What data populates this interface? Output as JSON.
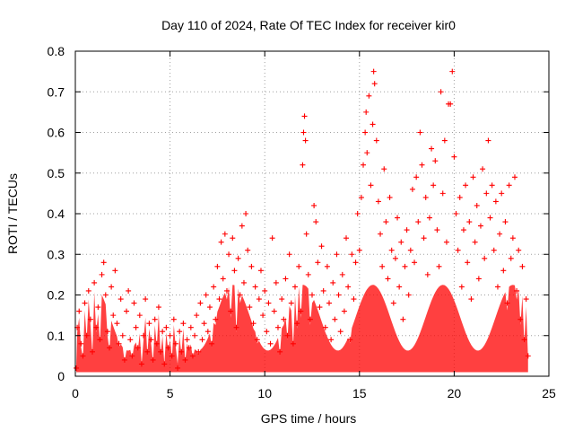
{
  "chart_data": {
    "type": "scatter",
    "title": "Day 110 of 2024, Rate Of TEC Index for receiver kir0",
    "xlabel": "GPS time / hours",
    "ylabel": "ROTI / TECUs",
    "xlim": [
      0,
      25
    ],
    "ylim": [
      0,
      0.8
    ],
    "xticks": [
      0,
      5,
      10,
      15,
      20,
      25
    ],
    "yticks": [
      0,
      0.1,
      0.2,
      0.3,
      0.4,
      0.5,
      0.6,
      0.7,
      0.8
    ],
    "xtick_labels": [
      "0",
      "5",
      "10",
      "15",
      "20",
      "25"
    ],
    "ytick_labels": [
      "0",
      "0.1",
      "0.2",
      "0.3",
      "0.4",
      "0.5",
      "0.6",
      "0.7",
      "0.8"
    ],
    "grid": true,
    "marker": "+",
    "color": "#ff0000",
    "series": [
      {
        "name": "ROTI",
        "points": [
          [
            0.05,
            0.02
          ],
          [
            0.1,
            0.12
          ],
          [
            0.2,
            0.16
          ],
          [
            0.3,
            0.08
          ],
          [
            0.4,
            0.05
          ],
          [
            0.5,
            0.18
          ],
          [
            0.6,
            0.1
          ],
          [
            0.7,
            0.21
          ],
          [
            0.8,
            0.14
          ],
          [
            0.9,
            0.06
          ],
          [
            1.0,
            0.23
          ],
          [
            1.1,
            0.12
          ],
          [
            1.2,
            0.17
          ],
          [
            1.3,
            0.09
          ],
          [
            1.4,
            0.25
          ],
          [
            1.5,
            0.28
          ],
          [
            1.6,
            0.2
          ],
          [
            1.7,
            0.11
          ],
          [
            1.8,
            0.07
          ],
          [
            1.9,
            0.22
          ],
          [
            2.0,
            0.15
          ],
          [
            2.1,
            0.26
          ],
          [
            2.2,
            0.13
          ],
          [
            2.3,
            0.08
          ],
          [
            2.4,
            0.19
          ],
          [
            2.5,
            0.1
          ],
          [
            2.6,
            0.04
          ],
          [
            2.7,
            0.16
          ],
          [
            2.8,
            0.21
          ],
          [
            2.9,
            0.09
          ],
          [
            3.0,
            0.05
          ],
          [
            3.1,
            0.18
          ],
          [
            3.2,
            0.12
          ],
          [
            3.3,
            0.07
          ],
          [
            3.4,
            0.15
          ],
          [
            3.5,
            0.03
          ],
          [
            3.6,
            0.1
          ],
          [
            3.7,
            0.19
          ],
          [
            3.8,
            0.06
          ],
          [
            3.9,
            0.13
          ],
          [
            4.0,
            0.09
          ],
          [
            4.1,
            0.04
          ],
          [
            4.2,
            0.14
          ],
          [
            4.3,
            0.08
          ],
          [
            4.4,
            0.17
          ],
          [
            4.5,
            0.06
          ],
          [
            4.6,
            0.11
          ],
          [
            4.7,
            0.03
          ],
          [
            4.8,
            0.12
          ],
          [
            4.9,
            0.07
          ],
          [
            5.0,
            0.1
          ],
          [
            5.1,
            0.05
          ],
          [
            5.2,
            0.14
          ],
          [
            5.3,
            0.08
          ],
          [
            5.4,
            0.02
          ],
          [
            5.5,
            0.11
          ],
          [
            5.6,
            0.06
          ],
          [
            5.7,
            0.13
          ],
          [
            5.8,
            0.04
          ],
          [
            5.9,
            0.09
          ],
          [
            6.0,
            0.07
          ],
          [
            6.1,
            0.12
          ],
          [
            6.2,
            0.05
          ],
          [
            6.3,
            0.1
          ],
          [
            6.4,
            0.15
          ],
          [
            6.5,
            0.06
          ],
          [
            6.6,
            0.18
          ],
          [
            6.7,
            0.09
          ],
          [
            6.8,
            0.13
          ],
          [
            6.9,
            0.2
          ],
          [
            7.0,
            0.11
          ],
          [
            7.1,
            0.17
          ],
          [
            7.2,
            0.08
          ],
          [
            7.3,
            0.22
          ],
          [
            7.4,
            0.14
          ],
          [
            7.5,
            0.27
          ],
          [
            7.6,
            0.19
          ],
          [
            7.7,
            0.33
          ],
          [
            7.8,
            0.24
          ],
          [
            7.9,
            0.35
          ],
          [
            8.0,
            0.21
          ],
          [
            8.1,
            0.3
          ],
          [
            8.2,
            0.16
          ],
          [
            8.3,
            0.34
          ],
          [
            8.4,
            0.26
          ],
          [
            8.5,
            0.12
          ],
          [
            8.6,
            0.29
          ],
          [
            8.7,
            0.2
          ],
          [
            8.8,
            0.37
          ],
          [
            8.9,
            0.23
          ],
          [
            9.0,
            0.4
          ],
          [
            9.1,
            0.31
          ],
          [
            9.2,
            0.17
          ],
          [
            9.3,
            0.27
          ],
          [
            9.4,
            0.13
          ],
          [
            9.5,
            0.22
          ],
          [
            9.6,
            0.09
          ],
          [
            9.7,
            0.19
          ],
          [
            9.8,
            0.26
          ],
          [
            9.9,
            0.15
          ],
          [
            10.0,
            0.21
          ],
          [
            10.1,
            0.11
          ],
          [
            10.2,
            0.18
          ],
          [
            10.3,
            0.08
          ],
          [
            10.4,
            0.34
          ],
          [
            10.5,
            0.16
          ],
          [
            10.6,
            0.23
          ],
          [
            10.7,
            0.12
          ],
          [
            10.8,
            0.06
          ],
          [
            10.9,
            0.19
          ],
          [
            11.0,
            0.14
          ],
          [
            11.1,
            0.24
          ],
          [
            11.2,
            0.1
          ],
          [
            11.3,
            0.3
          ],
          [
            11.4,
            0.18
          ],
          [
            11.5,
            0.08
          ],
          [
            11.6,
            0.22
          ],
          [
            11.7,
            0.13
          ],
          [
            11.8,
            0.27
          ],
          [
            11.9,
            0.16
          ],
          [
            12.0,
            0.52
          ],
          [
            12.05,
            0.6
          ],
          [
            12.1,
            0.64
          ],
          [
            12.15,
            0.58
          ],
          [
            12.2,
            0.35
          ],
          [
            12.3,
            0.25
          ],
          [
            12.4,
            0.14
          ],
          [
            12.5,
            0.2
          ],
          [
            12.6,
            0.42
          ],
          [
            12.7,
            0.38
          ],
          [
            12.8,
            0.28
          ],
          [
            12.9,
            0.17
          ],
          [
            13.0,
            0.32
          ],
          [
            13.1,
            0.21
          ],
          [
            13.2,
            0.12
          ],
          [
            13.3,
            0.27
          ],
          [
            13.4,
            0.18
          ],
          [
            13.5,
            0.09
          ],
          [
            13.6,
            0.23
          ],
          [
            13.7,
            0.14
          ],
          [
            13.8,
            0.3
          ],
          [
            13.9,
            0.2
          ],
          [
            14.0,
            0.11
          ],
          [
            14.1,
            0.25
          ],
          [
            14.2,
            0.16
          ],
          [
            14.3,
            0.34
          ],
          [
            14.4,
            0.22
          ],
          [
            14.5,
            0.09
          ],
          [
            14.6,
            0.3
          ],
          [
            14.7,
            0.19
          ],
          [
            14.8,
            0.28
          ],
          [
            14.9,
            0.4
          ],
          [
            15.0,
            0.31
          ],
          [
            15.1,
            0.44
          ],
          [
            15.2,
            0.52
          ],
          [
            15.3,
            0.6
          ],
          [
            15.35,
            0.65
          ],
          [
            15.4,
            0.55
          ],
          [
            15.5,
            0.69
          ],
          [
            15.6,
            0.47
          ],
          [
            15.7,
            0.62
          ],
          [
            15.75,
            0.75
          ],
          [
            15.8,
            0.72
          ],
          [
            15.9,
            0.58
          ],
          [
            16.0,
            0.43
          ],
          [
            16.1,
            0.35
          ],
          [
            16.2,
            0.27
          ],
          [
            16.3,
            0.51
          ],
          [
            16.4,
            0.38
          ],
          [
            16.5,
            0.24
          ],
          [
            16.6,
            0.44
          ],
          [
            16.7,
            0.31
          ],
          [
            16.8,
            0.18
          ],
          [
            16.9,
            0.29
          ],
          [
            17.0,
            0.39
          ],
          [
            17.1,
            0.22
          ],
          [
            17.2,
            0.33
          ],
          [
            17.3,
            0.14
          ],
          [
            17.4,
            0.27
          ],
          [
            17.5,
            0.36
          ],
          [
            17.6,
            0.2
          ],
          [
            17.7,
            0.31
          ],
          [
            17.8,
            0.46
          ],
          [
            17.9,
            0.28
          ],
          [
            18.0,
            0.49
          ],
          [
            18.1,
            0.38
          ],
          [
            18.2,
            0.6
          ],
          [
            18.3,
            0.52
          ],
          [
            18.4,
            0.34
          ],
          [
            18.5,
            0.44
          ],
          [
            18.6,
            0.25
          ],
          [
            18.7,
            0.39
          ],
          [
            18.8,
            0.56
          ],
          [
            18.9,
            0.47
          ],
          [
            19.0,
            0.53
          ],
          [
            19.1,
            0.36
          ],
          [
            19.2,
            0.27
          ],
          [
            19.3,
            0.7
          ],
          [
            19.4,
            0.45
          ],
          [
            19.5,
            0.58
          ],
          [
            19.6,
            0.33
          ],
          [
            19.7,
            0.67
          ],
          [
            19.8,
            0.67
          ],
          [
            19.9,
            0.75
          ],
          [
            20.0,
            0.54
          ],
          [
            20.1,
            0.4
          ],
          [
            20.2,
            0.31
          ],
          [
            20.3,
            0.44
          ],
          [
            20.4,
            0.22
          ],
          [
            20.5,
            0.36
          ],
          [
            20.6,
            0.47
          ],
          [
            20.7,
            0.28
          ],
          [
            20.8,
            0.38
          ],
          [
            20.9,
            0.19
          ],
          [
            21.0,
            0.49
          ],
          [
            21.1,
            0.33
          ],
          [
            21.2,
            0.42
          ],
          [
            21.3,
            0.24
          ],
          [
            21.4,
            0.37
          ],
          [
            21.5,
            0.51
          ],
          [
            21.6,
            0.29
          ],
          [
            21.7,
            0.45
          ],
          [
            21.8,
            0.58
          ],
          [
            21.9,
            0.39
          ],
          [
            22.0,
            0.47
          ],
          [
            22.1,
            0.31
          ],
          [
            22.2,
            0.43
          ],
          [
            22.3,
            0.22
          ],
          [
            22.4,
            0.35
          ],
          [
            22.5,
            0.45
          ],
          [
            22.6,
            0.26
          ],
          [
            22.7,
            0.38
          ],
          [
            22.8,
            0.18
          ],
          [
            22.9,
            0.47
          ],
          [
            23.0,
            0.29
          ],
          [
            23.1,
            0.34
          ],
          [
            23.2,
            0.49
          ],
          [
            23.3,
            0.21
          ],
          [
            23.4,
            0.31
          ],
          [
            23.5,
            0.14
          ],
          [
            23.6,
            0.27
          ],
          [
            23.7,
            0.09
          ],
          [
            23.8,
            0.19
          ],
          [
            23.9,
            0.05
          ]
        ]
      }
    ]
  }
}
